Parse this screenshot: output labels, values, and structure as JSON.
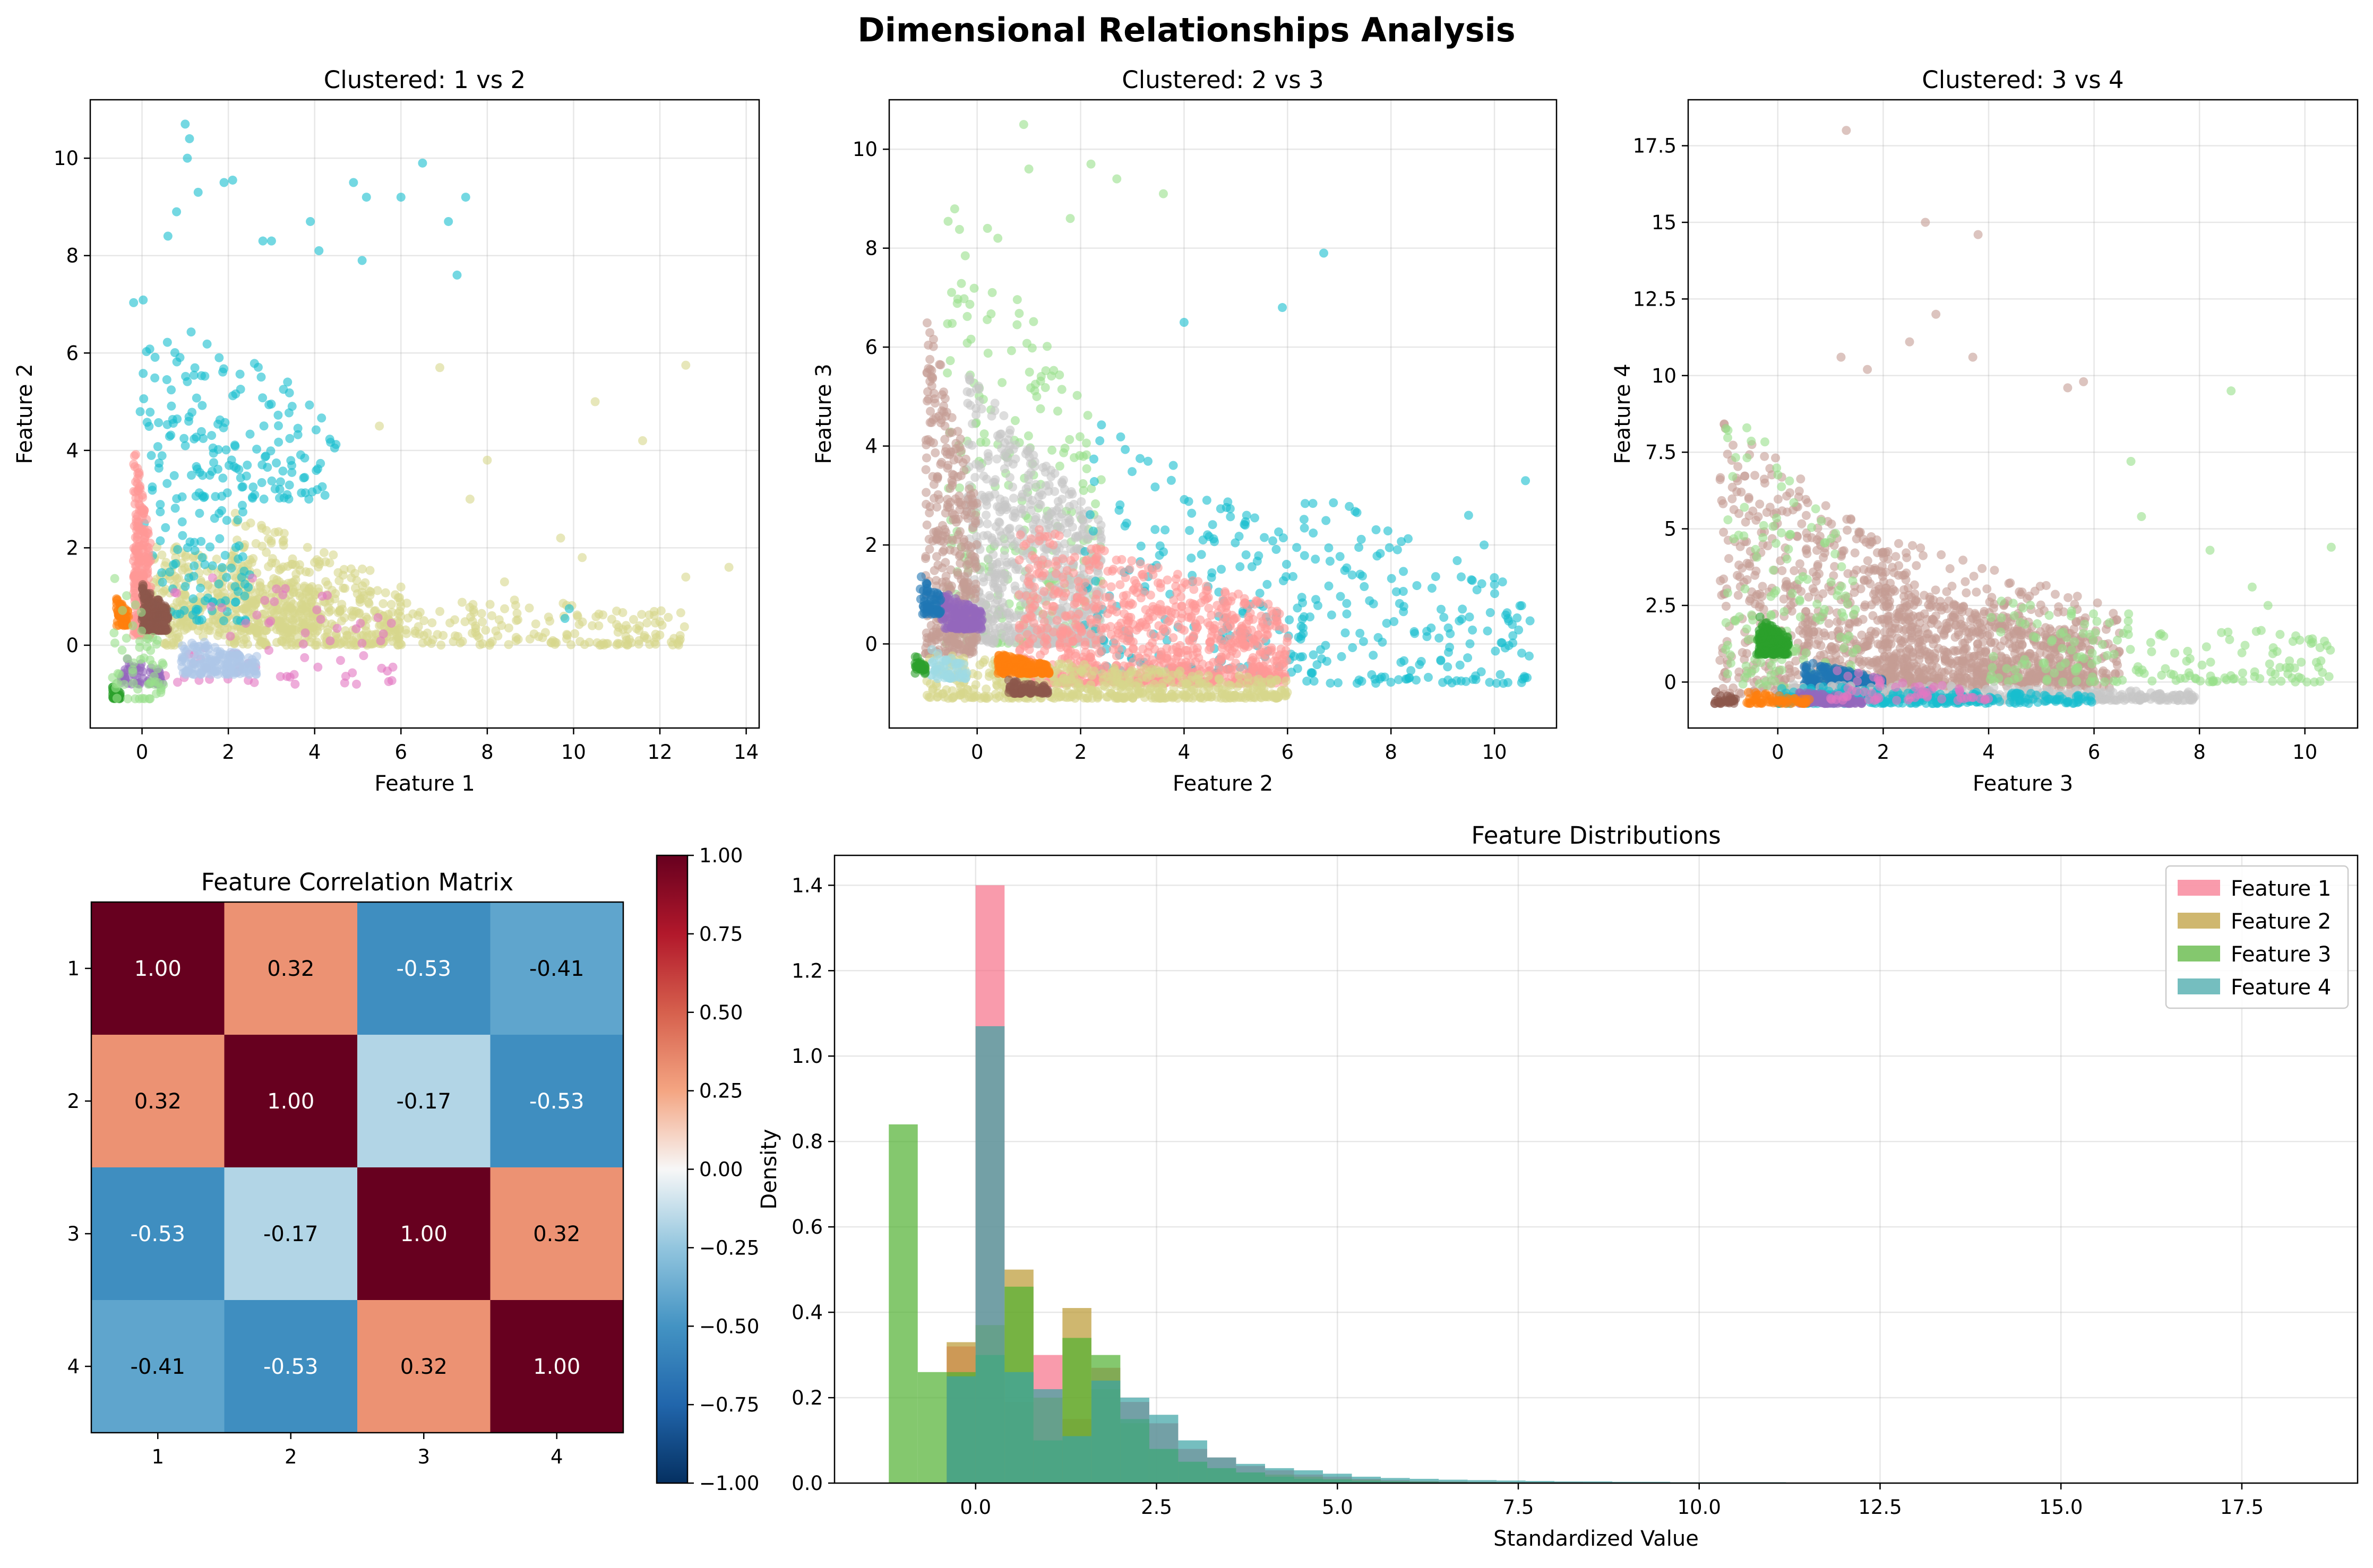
{
  "suptitle": "Dimensional Relationships Analysis",
  "chart_data": [
    {
      "type": "scatter",
      "title": "Clustered: 1 vs 2",
      "xlabel": "Feature 1",
      "ylabel": "Feature 2",
      "xlim": [
        -1.2,
        14.3
      ],
      "ylim": [
        -1.7,
        11.2
      ],
      "xticks": [
        0,
        2,
        4,
        6,
        8,
        10,
        12,
        14
      ],
      "yticks": [
        0,
        2,
        4,
        6,
        8,
        10
      ],
      "grid": true,
      "clusters": [
        {
          "color": "#d7d78c",
          "spread": [
            [
              0.2,
              4.2,
              0.3,
              2.2,
              1.0
            ],
            [
              0.5,
              12.6,
              0.0,
              1.5,
              1.0
            ],
            [
              2.0,
              6.0,
              0.0,
              2.8,
              1.0
            ]
          ],
          "n": 950,
          "points": [
            [
              12.6,
              5.75
            ],
            [
              10.5,
              5.0
            ],
            [
              11.6,
              4.2
            ],
            [
              13.6,
              1.6
            ],
            [
              12.6,
              1.4
            ],
            [
              10.2,
              1.8
            ],
            [
              8.0,
              3.8
            ],
            [
              6.9,
              5.7
            ],
            [
              5.5,
              4.5
            ],
            [
              9.7,
              2.2
            ],
            [
              8.4,
              1.3
            ],
            [
              7.6,
              3.0
            ]
          ]
        },
        {
          "color": "#17becf",
          "spread": [
            [
              -0.2,
              2.5,
              0.5,
              7.5,
              1.0
            ],
            [
              0.5,
              4.5,
              3.0,
              7.0,
              1.0
            ]
          ],
          "n": 260,
          "points": [
            [
              1.0,
              10.7
            ],
            [
              1.1,
              10.4
            ],
            [
              1.05,
              10.0
            ],
            [
              1.3,
              9.3
            ],
            [
              1.9,
              9.5
            ],
            [
              2.1,
              9.55
            ],
            [
              3.9,
              8.7
            ],
            [
              4.1,
              8.1
            ],
            [
              4.9,
              9.5
            ],
            [
              5.2,
              9.2
            ],
            [
              5.1,
              7.9
            ],
            [
              6.0,
              9.2
            ],
            [
              6.5,
              9.9
            ],
            [
              7.1,
              8.7
            ],
            [
              7.5,
              9.2
            ],
            [
              7.3,
              7.6
            ],
            [
              9.8,
              0.55
            ],
            [
              9.9,
              0.75
            ],
            [
              0.8,
              8.9
            ],
            [
              0.6,
              8.4
            ],
            [
              2.8,
              8.3
            ],
            [
              3.0,
              8.3
            ]
          ]
        },
        {
          "color": "#e377c2",
          "spread": [
            [
              0.5,
              6.0,
              -0.8,
              2.2,
              1.0
            ]
          ],
          "n": 70,
          "points": []
        },
        {
          "color": "#aec7e8",
          "spread": [
            [
              0.9,
              2.7,
              -0.6,
              0.2,
              1.0
            ]
          ],
          "n": 160,
          "points": []
        },
        {
          "color": "#ff9896",
          "spread": [
            [
              -0.2,
              0.2,
              0.2,
              4.3,
              1.0
            ]
          ],
          "n": 260,
          "points": []
        },
        {
          "color": "#ff7f0e",
          "spread": [
            [
              -0.6,
              -0.3,
              0.4,
              1.0,
              1.0
            ]
          ],
          "n": 60,
          "points": []
        },
        {
          "color": "#8c564b",
          "spread": [
            [
              0.0,
              0.6,
              0.3,
              1.3,
              1.0
            ]
          ],
          "n": 200,
          "points": []
        },
        {
          "color": "#9467bd",
          "spread": [
            [
              -0.5,
              0.5,
              -0.8,
              -0.2,
              1.0
            ]
          ],
          "n": 60,
          "points": []
        },
        {
          "color": "#2ca02c",
          "spread": [
            [
              -0.7,
              -0.5,
              -1.1,
              -0.8,
              1.0
            ]
          ],
          "n": 40,
          "points": []
        },
        {
          "color": "#98df8a",
          "spread": [
            [
              -0.7,
              0.5,
              -1.1,
              1.5,
              1.0
            ]
          ],
          "n": 60,
          "points": []
        }
      ]
    },
    {
      "type": "scatter",
      "title": "Clustered: 2 vs 3",
      "xlabel": "Feature 2",
      "ylabel": "Feature 3",
      "xlim": [
        -1.7,
        11.2
      ],
      "ylim": [
        -1.7,
        11.0
      ],
      "xticks": [
        0,
        2,
        4,
        6,
        8,
        10
      ],
      "yticks": [
        0,
        2,
        4,
        6,
        8,
        10
      ],
      "grid": true,
      "clusters": [
        {
          "color": "#98df8a",
          "spread": [
            [
              -0.6,
              2.4,
              0.0,
              9.5,
              1.0
            ]
          ],
          "n": 280,
          "points": [
            [
              0.9,
              10.5
            ],
            [
              1.0,
              9.6
            ],
            [
              2.2,
              9.7
            ],
            [
              2.7,
              9.4
            ],
            [
              3.6,
              9.1
            ],
            [
              1.8,
              8.6
            ],
            [
              0.2,
              8.4
            ],
            [
              0.4,
              8.2
            ]
          ]
        },
        {
          "color": "#c7c7c7",
          "spread": [
            [
              -0.2,
              2.4,
              0.0,
              5.5,
              1.0
            ]
          ],
          "n": 650,
          "points": []
        },
        {
          "color": "#c49c94",
          "spread": [
            [
              -1.0,
              0.0,
              -0.2,
              6.8,
              1.0
            ]
          ],
          "n": 380,
          "points": []
        },
        {
          "color": "#17becf",
          "spread": [
            [
              2.0,
              6.5,
              -0.6,
              4.8,
              1.0
            ],
            [
              6.0,
              10.7,
              -0.8,
              3.4,
              1.0
            ]
          ],
          "n": 360,
          "points": [
            [
              10.6,
              3.3
            ],
            [
              9.8,
              2.0
            ],
            [
              10.0,
              1.2
            ],
            [
              6.7,
              7.9
            ],
            [
              5.9,
              6.8
            ],
            [
              4.0,
              6.5
            ],
            [
              9.5,
              2.6
            ]
          ]
        },
        {
          "color": "#ff9896",
          "spread": [
            [
              0.8,
              6.0,
              -0.8,
              2.5,
              1.0
            ]
          ],
          "n": 900,
          "points": []
        },
        {
          "color": "#d7d78c",
          "spread": [
            [
              -1.0,
              6.0,
              -1.1,
              -0.2,
              1.0
            ]
          ],
          "n": 500,
          "points": []
        },
        {
          "color": "#ff7f0e",
          "spread": [
            [
              0.4,
              1.4,
              -0.6,
              -0.2,
              1.0
            ]
          ],
          "n": 180,
          "points": []
        },
        {
          "color": "#9467bd",
          "spread": [
            [
              -0.7,
              0.1,
              0.3,
              1.1,
              1.0
            ]
          ],
          "n": 160,
          "points": []
        },
        {
          "color": "#1f77b4",
          "spread": [
            [
              -1.1,
              -0.7,
              0.6,
              1.4,
              1.0
            ]
          ],
          "n": 60,
          "points": []
        },
        {
          "color": "#8c564b",
          "spread": [
            [
              0.6,
              1.4,
              -1.0,
              -0.7,
              1.0
            ]
          ],
          "n": 80,
          "points": []
        },
        {
          "color": "#9edae5",
          "spread": [
            [
              -0.9,
              -0.2,
              -0.7,
              -0.1,
              1.0
            ]
          ],
          "n": 60,
          "points": []
        },
        {
          "color": "#2ca02c",
          "spread": [
            [
              -1.2,
              -1.0,
              -0.6,
              -0.2,
              1.0
            ]
          ],
          "n": 30,
          "points": []
        }
      ]
    },
    {
      "type": "scatter",
      "title": "Clustered: 3 vs 4",
      "xlabel": "Feature 3",
      "ylabel": "Feature 4",
      "xlim": [
        -1.7,
        11.0
      ],
      "ylim": [
        -1.5,
        19.0
      ],
      "xticks": [
        0,
        2,
        4,
        6,
        8,
        10
      ],
      "yticks": [
        0.0,
        2.5,
        5.0,
        7.5,
        10.0,
        12.5,
        15.0,
        17.5
      ],
      "grid": true,
      "clusters": [
        {
          "color": "#c49c94",
          "spread": [
            [
              -1.1,
              2.6,
              -0.4,
              8.8,
              1.0
            ],
            [
              0.5,
              6.5,
              -0.2,
              5.6,
              1.0
            ],
            [
              2.0,
              6.0,
              0.0,
              3.2,
              1.0
            ]
          ],
          "n": 1500,
          "points": [
            [
              1.3,
              18.0
            ],
            [
              2.8,
              15.0
            ],
            [
              3.8,
              14.6
            ],
            [
              2.5,
              11.1
            ],
            [
              3.0,
              12.0
            ],
            [
              3.7,
              10.6
            ],
            [
              1.7,
              10.2
            ],
            [
              1.2,
              10.6
            ],
            [
              5.8,
              9.8
            ],
            [
              5.5,
              9.6
            ]
          ]
        },
        {
          "color": "#98df8a",
          "spread": [
            [
              -1.0,
              1.5,
              -0.2,
              9.6,
              1.0
            ],
            [
              4.0,
              10.5,
              0.0,
              3.0,
              1.0
            ]
          ],
          "n": 320,
          "points": [
            [
              10.5,
              4.4
            ],
            [
              8.6,
              9.5
            ],
            [
              6.7,
              7.2
            ],
            [
              6.9,
              5.4
            ],
            [
              8.2,
              4.3
            ],
            [
              9.0,
              3.1
            ],
            [
              9.3,
              2.5
            ]
          ]
        },
        {
          "color": "#1f77b4",
          "spread": [
            [
              0.5,
              2.0,
              -0.4,
              0.7,
              1.0
            ]
          ],
          "n": 300,
          "points": []
        },
        {
          "color": "#2ca02c",
          "spread": [
            [
              -0.4,
              0.2,
              0.9,
              2.2,
              1.0
            ]
          ],
          "n": 180,
          "points": []
        },
        {
          "color": "#c7c7c7",
          "spread": [
            [
              0.2,
              8.0,
              -0.6,
              0.0,
              1.0
            ]
          ],
          "n": 350,
          "points": []
        },
        {
          "color": "#17becf",
          "spread": [
            [
              0.0,
              6.0,
              -0.7,
              -0.1,
              1.0
            ]
          ],
          "n": 250,
          "points": []
        },
        {
          "color": "#9467bd",
          "spread": [
            [
              0.4,
              1.6,
              -0.7,
              -0.3,
              1.0
            ]
          ],
          "n": 100,
          "points": []
        },
        {
          "color": "#ff7f0e",
          "spread": [
            [
              -0.6,
              0.6,
              -0.7,
              -0.3,
              1.0
            ]
          ],
          "n": 60,
          "points": []
        },
        {
          "color": "#8c564b",
          "spread": [
            [
              -1.2,
              -0.8,
              -0.7,
              -0.3,
              1.0
            ]
          ],
          "n": 30,
          "points": []
        },
        {
          "color": "#e377c2",
          "spread": [
            [
              1.0,
              4.0,
              -0.6,
              0.4,
              1.0
            ]
          ],
          "n": 60,
          "points": []
        }
      ]
    },
    {
      "type": "heatmap",
      "title": "Feature Correlation Matrix",
      "labels": [
        "1",
        "2",
        "3",
        "4"
      ],
      "values": [
        [
          1.0,
          0.32,
          -0.53,
          -0.41
        ],
        [
          0.32,
          1.0,
          -0.17,
          -0.53
        ],
        [
          -0.53,
          -0.17,
          1.0,
          0.32
        ],
        [
          -0.41,
          -0.53,
          0.32,
          1.0
        ]
      ],
      "cell_text": [
        [
          "1.00",
          "0.32",
          "-0.53",
          "-0.41"
        ],
        [
          "0.32",
          "1.00",
          "-0.17",
          "-0.53"
        ],
        [
          "-0.53",
          "-0.17",
          "1.00",
          "0.32"
        ],
        [
          "-0.41",
          "-0.53",
          "0.32",
          "1.00"
        ]
      ],
      "colormap": "RdBu_r",
      "vmin": -1.0,
      "vmax": 1.0,
      "colorbar_ticks": [
        "1.00",
        "0.75",
        "0.50",
        "0.25",
        "0.00",
        "−0.25",
        "−0.50",
        "−0.75",
        "−1.00"
      ]
    },
    {
      "type": "bar",
      "title": "Feature Distributions",
      "xlabel": "Standardized Value",
      "ylabel": "Density",
      "xlim": [
        -1.95,
        19.1
      ],
      "ylim": [
        0,
        1.47
      ],
      "xticks": [
        "0.0",
        "2.5",
        "5.0",
        "7.5",
        "10.0",
        "12.5",
        "15.0",
        "17.5"
      ],
      "yticks": [
        "0.0",
        "0.2",
        "0.4",
        "0.6",
        "0.8",
        "1.0",
        "1.2",
        "1.4"
      ],
      "legend_position": "upper right",
      "series": [
        {
          "name": "Feature 1",
          "color": "#f77189",
          "bin_start": -1.2,
          "bin_width": 0.4,
          "values": [
            0.0,
            0.0,
            0.32,
            1.4,
            0.19,
            0.3,
            0.15,
            0.27,
            0.19,
            0.14,
            0.08,
            0.06,
            0.04,
            0.03,
            0.02,
            0.015,
            0.01,
            0.007,
            0.005,
            0.004,
            0.003,
            0.002,
            0.002,
            0.002,
            0.001,
            0.001,
            0.001,
            0.001,
            0.001,
            0.001
          ]
        },
        {
          "name": "Feature 2",
          "color": "#bb9832",
          "bin_start": -1.2,
          "bin_width": 0.4,
          "values": [
            0.0,
            0.0,
            0.33,
            0.37,
            0.5,
            0.2,
            0.41,
            0.22,
            0.14,
            0.08,
            0.05,
            0.035,
            0.025,
            0.02,
            0.015,
            0.01,
            0.008,
            0.005,
            0.004,
            0.003,
            0.002,
            0.002,
            0.002,
            0.001,
            0.001,
            0.001
          ]
        },
        {
          "name": "Feature 3",
          "color": "#50b131",
          "bin_start": -1.2,
          "bin_width": 0.4,
          "values": [
            0.84,
            0.26,
            0.26,
            0.3,
            0.46,
            0.1,
            0.34,
            0.3,
            0.15,
            0.08,
            0.05,
            0.035,
            0.025,
            0.015,
            0.01,
            0.008,
            0.005,
            0.004,
            0.003,
            0.002,
            0.002,
            0.001,
            0.001
          ]
        },
        {
          "name": "Feature 4",
          "color": "#3ba3a4",
          "bin_start": -1.2,
          "bin_width": 0.4,
          "values": [
            0.0,
            0.0,
            0.25,
            1.07,
            0.26,
            0.22,
            0.11,
            0.24,
            0.2,
            0.16,
            0.1,
            0.06,
            0.045,
            0.035,
            0.03,
            0.022,
            0.015,
            0.012,
            0.01,
            0.008,
            0.007,
            0.006,
            0.005,
            0.004,
            0.004,
            0.003,
            0.003,
            0.002,
            0.002,
            0.002,
            0.002,
            0.001,
            0.001,
            0.001,
            0.001,
            0.001,
            0.001,
            0.001,
            0.001,
            0.001,
            0.001,
            0.001,
            0.001,
            0.001,
            0.001,
            0.001,
            0.001,
            0.001,
            0.001,
            0.001
          ]
        }
      ]
    }
  ]
}
